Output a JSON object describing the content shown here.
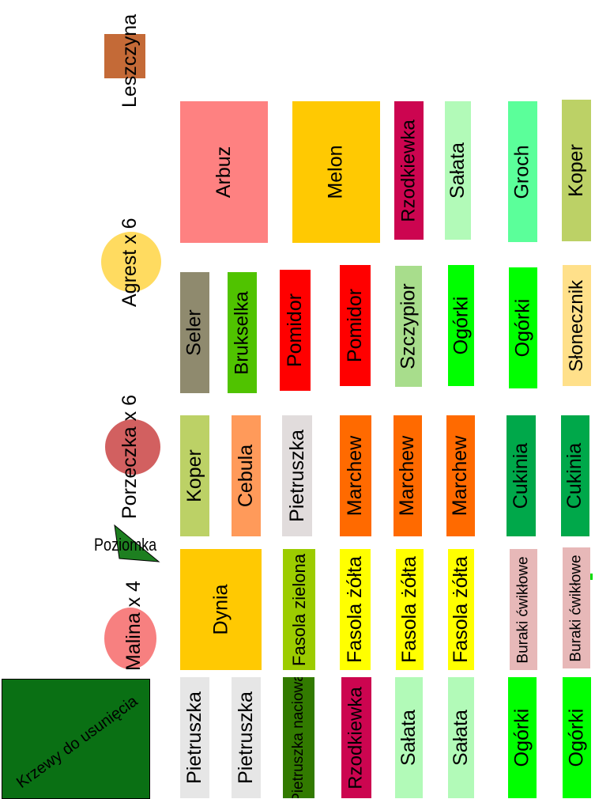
{
  "shrubs": {
    "leszczyna": {
      "label": "Leszczyna",
      "color": "#c46a37"
    },
    "agrest": {
      "label": "Agrest x 6",
      "color": "#ffdb60"
    },
    "porzeczka": {
      "label": "Porzeczka x 6",
      "color": "#d26060"
    },
    "poziomka": {
      "label": "Poziomka",
      "color": "#1d7f20"
    },
    "malina": {
      "label": "Malina x 4",
      "color": "#f78080"
    },
    "krzewy": {
      "label": "Krzewy do usunięcia",
      "color": "#0a7014"
    }
  },
  "beds": {
    "row1": [
      {
        "label": "Arbuz",
        "color": "#fe8181"
      },
      {
        "label": "Melon",
        "color": "#ffc902"
      },
      {
        "label": "Rzodkiewka",
        "color": "#cc0550"
      },
      {
        "label": "Sałata",
        "color": "#b2fab8"
      },
      {
        "label": "Groch",
        "color": "#5bff9a"
      },
      {
        "label": "Koper",
        "color": "#bcd166"
      }
    ],
    "row2": [
      {
        "label": "Seler",
        "color": "#8f8a6e"
      },
      {
        "label": "Brukselka",
        "color": "#50c300"
      },
      {
        "label": "Pomidor",
        "color": "#ff0000"
      },
      {
        "label": "Pomidor",
        "color": "#ff0000"
      },
      {
        "label": "Szczypior",
        "color": "#a8dd8c"
      },
      {
        "label": "Ogórki",
        "color": "#00ff00"
      },
      {
        "label": "Ogórki",
        "color": "#00ff00"
      },
      {
        "label": "Słonecznik",
        "color": "#ffe08a"
      }
    ],
    "row3": [
      {
        "label": "Koper",
        "color": "#bcd166"
      },
      {
        "label": "Cebula",
        "color": "#ff9a5a"
      },
      {
        "label": "Pietruszka",
        "color": "#e1dcdc"
      },
      {
        "label": "Marchew",
        "color": "#ff6a00"
      },
      {
        "label": "Marchew",
        "color": "#ff6a00"
      },
      {
        "label": "Marchew",
        "color": "#ff6a00"
      },
      {
        "label": "Cukinia",
        "color": "#00a84a"
      },
      {
        "label": "Cukinia",
        "color": "#00a84a"
      }
    ],
    "row4": [
      {
        "label": "Dynia",
        "color": "#ffc902"
      },
      {
        "label": "Fasola zielona",
        "color": "#9ccc00"
      },
      {
        "label": "Fasola żółta",
        "color": "#ffff00"
      },
      {
        "label": "Fasola żółta",
        "color": "#ffff00"
      },
      {
        "label": "Fasola żółta",
        "color": "#ffff00"
      },
      {
        "label": "Buraki ćwikłowe",
        "color": "#e7b8b8"
      },
      {
        "label": "Buraki ćwikłowe",
        "color": "#e7b8b8"
      }
    ],
    "row5": [
      {
        "label": "Pietruszka",
        "color": "#e6e6e6"
      },
      {
        "label": "Pietruszka",
        "color": "#e6e6e6"
      },
      {
        "label": "Pietruszka naciowa",
        "color": "#327a00"
      },
      {
        "label": "Rzodkiewka",
        "color": "#cc0550"
      },
      {
        "label": "Sałata",
        "color": "#b2fab8"
      },
      {
        "label": "Sałata",
        "color": "#b2fab8"
      },
      {
        "label": "Ogórki",
        "color": "#00ff00"
      },
      {
        "label": "Ogórki",
        "color": "#00ff00"
      }
    ]
  },
  "markers": {
    "small_green": "#00dd00"
  }
}
